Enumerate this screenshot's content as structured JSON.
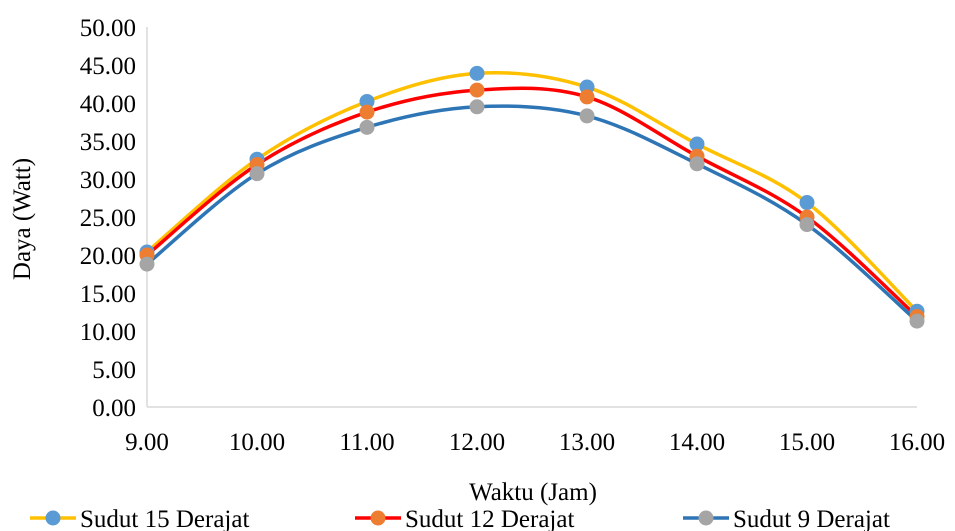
{
  "chart_data": {
    "type": "line",
    "title": "",
    "xlabel": "Waktu (Jam)",
    "ylabel": "Daya (Watt)",
    "x": [
      9,
      10,
      11,
      12,
      13,
      14,
      15,
      16
    ],
    "x_tick_labels": [
      "9.00",
      "10.00",
      "11.00",
      "12.00",
      "13.00",
      "14.00",
      "15.00",
      "16.00"
    ],
    "y_tick_labels": [
      "0.00",
      "5.00",
      "10.00",
      "15.00",
      "20.00",
      "25.00",
      "30.00",
      "35.00",
      "40.00",
      "45.00",
      "50.00"
    ],
    "xlim": [
      9,
      16
    ],
    "ylim": [
      0,
      50
    ],
    "smooth": true,
    "grid": false,
    "legend_position": "bottom",
    "series": [
      {
        "name": "Sudut 15 Derajat",
        "values": [
          20.4,
          32.6,
          40.2,
          43.9,
          42.1,
          34.6,
          26.9,
          12.6
        ],
        "line_color": "#FFC000",
        "marker_color": "#5B9BD5"
      },
      {
        "name": "Sudut 12 Derajat",
        "values": [
          20.0,
          31.9,
          38.8,
          41.7,
          40.8,
          33.0,
          25.0,
          11.9
        ],
        "line_color": "#FF0000",
        "marker_color": "#ED7D31"
      },
      {
        "name": "Sudut 9 Derajat",
        "values": [
          18.8,
          30.7,
          36.8,
          39.5,
          38.3,
          32.0,
          24.0,
          11.3
        ],
        "line_color": "#2E75B6",
        "marker_color": "#A5A5A5"
      }
    ]
  }
}
